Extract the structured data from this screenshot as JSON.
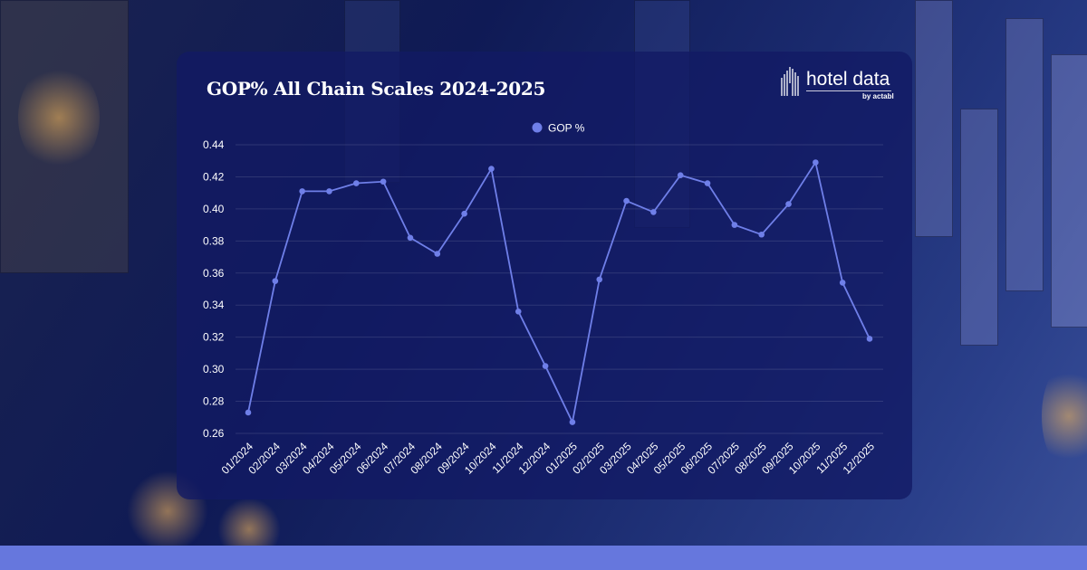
{
  "logo": {
    "name": "hotel data",
    "sub": "by actabl"
  },
  "colors": {
    "series": "#6f7fe8",
    "card": "#121a64",
    "bottom_bar": "#6677dd"
  },
  "chart_data": {
    "type": "line",
    "title": "GOP% All Chain Scales 2024-2025",
    "legend": {
      "position": "top",
      "entries": [
        "GOP %"
      ]
    },
    "categories": [
      "01/2024",
      "02/2024",
      "03/2024",
      "04/2024",
      "05/2024",
      "06/2024",
      "07/2024",
      "08/2024",
      "09/2024",
      "10/2024",
      "11/2024",
      "12/2024",
      "01/2025",
      "02/2025",
      "03/2025",
      "04/2025",
      "05/2025",
      "06/2025",
      "07/2025",
      "08/2025",
      "09/2025",
      "10/2025",
      "11/2025",
      "12/2025"
    ],
    "series": [
      {
        "name": "GOP %",
        "values": [
          0.273,
          0.355,
          0.411,
          0.411,
          0.416,
          0.417,
          0.382,
          0.372,
          0.397,
          0.425,
          0.336,
          0.302,
          0.267,
          0.356,
          0.405,
          0.398,
          0.421,
          0.416,
          0.39,
          0.384,
          0.403,
          0.429,
          0.354,
          0.319
        ]
      }
    ],
    "ylim": [
      0.26,
      0.44
    ],
    "yticks": [
      "0.26",
      "0.28",
      "0.30",
      "0.32",
      "0.34",
      "0.36",
      "0.38",
      "0.40",
      "0.42",
      "0.44"
    ],
    "grid": true
  }
}
